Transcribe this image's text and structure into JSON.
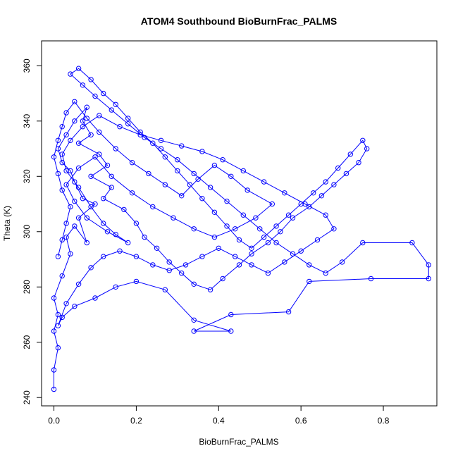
{
  "chart_data": {
    "type": "scatter",
    "title": "ATOM4 Southbound BioBurnFrac_PALMS",
    "xlabel": "BioBurnFrac_PALMS",
    "ylabel": "Theta (K)",
    "xlim": [
      -0.03,
      0.93
    ],
    "ylim": [
      237,
      369
    ],
    "x_ticks": [
      "0.0",
      "0.2",
      "0.4",
      "0.6",
      "0.8"
    ],
    "y_ticks": [
      "240",
      "260",
      "280",
      "300",
      "320",
      "340",
      "360"
    ],
    "x_tick_values": [
      0.0,
      0.2,
      0.4,
      0.6,
      0.8
    ],
    "y_tick_values": [
      240,
      260,
      280,
      300,
      320,
      340,
      360
    ],
    "grid": false,
    "legend": "none",
    "series": [
      {
        "color": "#0000ff",
        "marker": "open-circle",
        "line": true,
        "points": [
          [
            0.0,
            243
          ],
          [
            0.0,
            250
          ],
          [
            0.01,
            258
          ],
          [
            0.0,
            264
          ],
          [
            0.01,
            270
          ],
          [
            0.0,
            276
          ],
          [
            0.02,
            284
          ],
          [
            0.04,
            292
          ],
          [
            0.03,
            298
          ],
          [
            0.05,
            302
          ],
          [
            0.08,
            296
          ],
          [
            0.06,
            305
          ],
          [
            0.1,
            310
          ],
          [
            0.07,
            312
          ],
          [
            0.05,
            318
          ],
          [
            0.04,
            322
          ],
          [
            0.02,
            325
          ],
          [
            0.01,
            330
          ],
          [
            0.03,
            335
          ],
          [
            0.05,
            340
          ],
          [
            0.08,
            345
          ],
          [
            0.07,
            340
          ],
          [
            0.09,
            335
          ],
          [
            0.06,
            332
          ],
          [
            0.11,
            328
          ],
          [
            0.13,
            324
          ],
          [
            0.09,
            320
          ],
          [
            0.14,
            316
          ],
          [
            0.12,
            312
          ],
          [
            0.17,
            308
          ],
          [
            0.2,
            303
          ],
          [
            0.22,
            298
          ],
          [
            0.25,
            294
          ],
          [
            0.28,
            289
          ],
          [
            0.31,
            285
          ],
          [
            0.34,
            281
          ],
          [
            0.38,
            279
          ],
          [
            0.41,
            283
          ],
          [
            0.45,
            288
          ],
          [
            0.48,
            292
          ],
          [
            0.52,
            296
          ],
          [
            0.55,
            300
          ],
          [
            0.58,
            305
          ],
          [
            0.62,
            309
          ],
          [
            0.65,
            313
          ],
          [
            0.68,
            317
          ],
          [
            0.71,
            321
          ],
          [
            0.74,
            325
          ],
          [
            0.76,
            330
          ],
          [
            0.75,
            333
          ],
          [
            0.72,
            328
          ],
          [
            0.69,
            323
          ],
          [
            0.66,
            318
          ],
          [
            0.63,
            314
          ],
          [
            0.6,
            310
          ],
          [
            0.57,
            306
          ],
          [
            0.54,
            302
          ],
          [
            0.51,
            298
          ],
          [
            0.48,
            294
          ],
          [
            0.45,
            297
          ],
          [
            0.42,
            302
          ],
          [
            0.39,
            307
          ],
          [
            0.36,
            312
          ],
          [
            0.33,
            317
          ],
          [
            0.3,
            322
          ],
          [
            0.27,
            327
          ],
          [
            0.24,
            332
          ],
          [
            0.21,
            336
          ],
          [
            0.18,
            341
          ],
          [
            0.15,
            346
          ],
          [
            0.12,
            350
          ],
          [
            0.09,
            355
          ],
          [
            0.06,
            359
          ],
          [
            0.04,
            357
          ],
          [
            0.07,
            353
          ],
          [
            0.1,
            349
          ],
          [
            0.14,
            344
          ],
          [
            0.18,
            339
          ],
          [
            0.22,
            334
          ],
          [
            0.26,
            330
          ],
          [
            0.3,
            326
          ],
          [
            0.34,
            321
          ],
          [
            0.38,
            316
          ],
          [
            0.42,
            311
          ],
          [
            0.46,
            306
          ],
          [
            0.5,
            301
          ],
          [
            0.54,
            296
          ],
          [
            0.58,
            292
          ],
          [
            0.62,
            288
          ],
          [
            0.66,
            285
          ],
          [
            0.7,
            289
          ],
          [
            0.75,
            296
          ],
          [
            0.87,
            296
          ],
          [
            0.91,
            288
          ],
          [
            0.91,
            283
          ],
          [
            0.77,
            283
          ],
          [
            0.62,
            282
          ],
          [
            0.57,
            271
          ],
          [
            0.43,
            270
          ],
          [
            0.34,
            264
          ],
          [
            0.43,
            264
          ],
          [
            0.34,
            268
          ],
          [
            0.27,
            279
          ],
          [
            0.2,
            282
          ],
          [
            0.15,
            280
          ],
          [
            0.1,
            276
          ],
          [
            0.05,
            273
          ],
          [
            0.02,
            269
          ],
          [
            0.01,
            266
          ],
          [
            0.03,
            274
          ],
          [
            0.06,
            281
          ],
          [
            0.09,
            287
          ],
          [
            0.12,
            291
          ],
          [
            0.16,
            293
          ],
          [
            0.2,
            291
          ],
          [
            0.24,
            288
          ],
          [
            0.28,
            286
          ],
          [
            0.32,
            288
          ],
          [
            0.36,
            291
          ],
          [
            0.4,
            294
          ],
          [
            0.44,
            291
          ],
          [
            0.48,
            288
          ],
          [
            0.52,
            285
          ],
          [
            0.56,
            289
          ],
          [
            0.6,
            293
          ],
          [
            0.64,
            297
          ],
          [
            0.68,
            301
          ],
          [
            0.66,
            306
          ],
          [
            0.61,
            310
          ],
          [
            0.56,
            314
          ],
          [
            0.51,
            318
          ],
          [
            0.46,
            322
          ],
          [
            0.41,
            326
          ],
          [
            0.36,
            329
          ],
          [
            0.31,
            331
          ],
          [
            0.26,
            333
          ],
          [
            0.21,
            335
          ],
          [
            0.16,
            338
          ],
          [
            0.11,
            342
          ],
          [
            0.07,
            338
          ],
          [
            0.04,
            333
          ],
          [
            0.02,
            328
          ],
          [
            0.03,
            322
          ],
          [
            0.06,
            316
          ],
          [
            0.09,
            309
          ],
          [
            0.12,
            303
          ],
          [
            0.15,
            299
          ],
          [
            0.18,
            296
          ],
          [
            0.13,
            300
          ],
          [
            0.08,
            305
          ],
          [
            0.05,
            311
          ],
          [
            0.03,
            317
          ],
          [
            0.06,
            323
          ],
          [
            0.1,
            327
          ],
          [
            0.14,
            320
          ],
          [
            0.19,
            314
          ],
          [
            0.24,
            309
          ],
          [
            0.29,
            305
          ],
          [
            0.34,
            301
          ],
          [
            0.39,
            298
          ],
          [
            0.44,
            301
          ],
          [
            0.49,
            305
          ],
          [
            0.53,
            310
          ],
          [
            0.47,
            315
          ],
          [
            0.43,
            320
          ],
          [
            0.39,
            324
          ],
          [
            0.35,
            319
          ],
          [
            0.31,
            313
          ],
          [
            0.27,
            317
          ],
          [
            0.23,
            321
          ],
          [
            0.19,
            325
          ],
          [
            0.15,
            330
          ],
          [
            0.11,
            336
          ],
          [
            0.08,
            341
          ],
          [
            0.05,
            347
          ],
          [
            0.03,
            343
          ],
          [
            0.02,
            338
          ],
          [
            0.01,
            333
          ],
          [
            0.0,
            327
          ],
          [
            0.01,
            321
          ],
          [
            0.02,
            315
          ],
          [
            0.04,
            309
          ],
          [
            0.03,
            303
          ],
          [
            0.02,
            297
          ],
          [
            0.01,
            291
          ]
        ]
      }
    ]
  }
}
